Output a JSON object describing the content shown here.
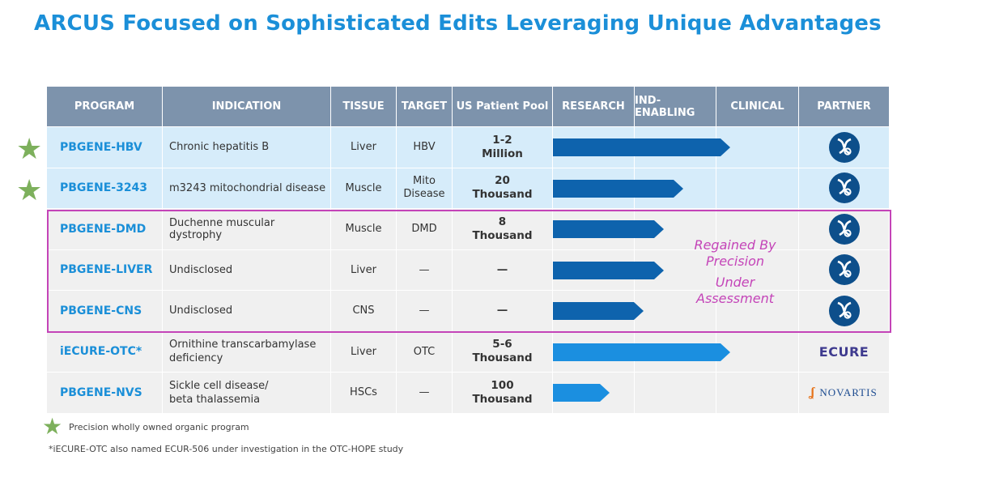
{
  "title": "ARCUS Focused on Sophisticated Edits Leveraging Unique Advantages",
  "headers": {
    "program": "PROGRAM",
    "indication": "INDICATION",
    "tissue": "TISSUE",
    "target": "TARGET",
    "pool": "US Patient Pool",
    "research": "RESEARCH",
    "ind_enabling": "IND-ENABLING",
    "clinical": "CLINICAL",
    "partner": "PARTNER"
  },
  "rows": [
    {
      "program": "PBGENE-HBV",
      "indication": "Chronic hepatitis B",
      "tissue": "Liver",
      "target": "HBV",
      "pool_1": "1-2",
      "pool_2": "Million",
      "progress": 0.72,
      "partner": "helix-logo",
      "style": "highlight",
      "star": true,
      "bar_color": "#0e63ad"
    },
    {
      "program": "PBGENE-3243",
      "indication": "m3243 mitochondrial disease",
      "tissue": "Muscle",
      "target_1": "Mito",
      "target_2": "Disease",
      "pool_1": "20",
      "pool_2": "Thousand",
      "progress": 0.53,
      "partner": "helix-logo",
      "style": "highlight",
      "star": true,
      "bar_color": "#0e63ad"
    },
    {
      "program": "PBGENE-DMD",
      "indication": "Duchenne muscular dystrophy",
      "tissue": "Muscle",
      "target": "DMD",
      "pool_1": "8",
      "pool_2": "Thousand",
      "progress": 0.45,
      "partner": "helix-logo",
      "style": "plain",
      "star": false,
      "bar_color": "#0e63ad"
    },
    {
      "program": "PBGENE-LIVER",
      "indication": "Undisclosed",
      "tissue": "Liver",
      "target": "—",
      "pool_1": "—",
      "pool_2": "",
      "progress": 0.45,
      "partner": "helix-logo",
      "style": "plain",
      "star": false,
      "bar_color": "#0e63ad"
    },
    {
      "program": "PBGENE-CNS",
      "indication": "Undisclosed",
      "tissue": "CNS",
      "target": "—",
      "pool_1": "—",
      "pool_2": "",
      "progress": 0.37,
      "partner": "helix-logo",
      "style": "plain",
      "star": false,
      "bar_color": "#0e63ad"
    },
    {
      "program": "iECURE-OTC*",
      "indication_1": "Ornithine transcarbamylase",
      "indication_2": "deficiency",
      "tissue": "Liver",
      "target": "OTC",
      "pool_1": "5-6",
      "pool_2": "Thousand",
      "progress": 0.72,
      "partner": "ECURE",
      "style": "plain",
      "star": false,
      "bar_color": "#1b8fe0"
    },
    {
      "program": "PBGENE-NVS",
      "indication_1": "Sickle cell disease/",
      "indication_2": "beta thalassemia",
      "tissue": "HSCs",
      "target": "—",
      "pool_1": "100",
      "pool_2": "Thousand",
      "progress": 0.23,
      "partner": "NOVARTIS",
      "style": "plain",
      "star": false,
      "bar_color": "#1b8fe0"
    }
  ],
  "regain_text_1": "Regained By",
  "regain_text_2": "Precision",
  "regain_text_3": "Under",
  "regain_text_4": "Assessment",
  "footnote_star": "Precision wholly owned organic program",
  "footnote_ecure": "*iECURE-OTC also named ECUR-506 under investigation in the OTC-HOPE study",
  "colors": {
    "header_bg": "#7d93ac",
    "highlight_bg": "#d6ecfa",
    "plain_bg": "#f0f0f0",
    "accent": "#1b8fd8",
    "regain": "#c444b8",
    "star": "#7db05c"
  }
}
